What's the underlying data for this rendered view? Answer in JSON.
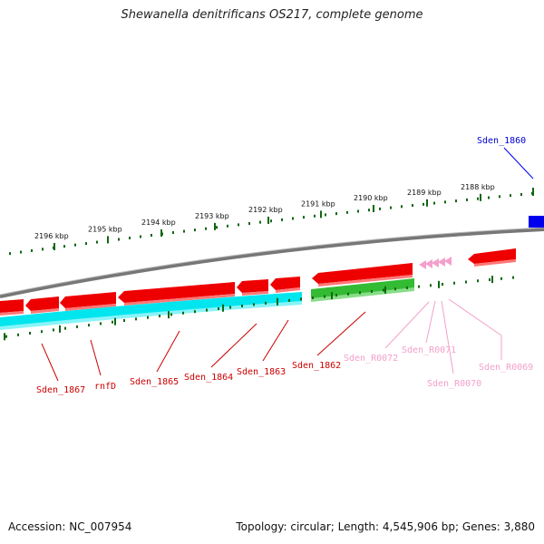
{
  "title": "Shewanella denitrificans OS217, complete genome",
  "footer": {
    "accession": "Accession: NC_007954",
    "stats": "Topology: circular; Length: 4,545,906 bp; Genes: 3,880"
  },
  "colors": {
    "forward_gene": "#ee0000",
    "reverse_cds": "#00e5ee",
    "reverse_other": "#33bb33",
    "rna": "#f3a0cc",
    "highlight": "#0000ee",
    "backbone": "#888888",
    "ruler": "#116611"
  },
  "ruler_labels": [
    "2196 kbp",
    "2195 kbp",
    "2194 kbp",
    "2193 kbp",
    "2192 kbp",
    "2191 kbp",
    "2190 kbp",
    "2189 kbp",
    "2188 kbp"
  ],
  "gene_labels": [
    {
      "text": "Sden_1860",
      "kind": "highlight"
    },
    {
      "text": "Sden_1867",
      "kind": "cds"
    },
    {
      "text": "rnfD",
      "kind": "cds"
    },
    {
      "text": "Sden_1865",
      "kind": "cds"
    },
    {
      "text": "Sden_1864",
      "kind": "cds"
    },
    {
      "text": "Sden_1863",
      "kind": "cds"
    },
    {
      "text": "Sden_1862",
      "kind": "cds"
    },
    {
      "text": "Sden_R0072",
      "kind": "rna"
    },
    {
      "text": "Sden_R0071",
      "kind": "rna"
    },
    {
      "text": "Sden_R0070",
      "kind": "rna"
    },
    {
      "text": "Sden_R0069",
      "kind": "rna"
    }
  ]
}
